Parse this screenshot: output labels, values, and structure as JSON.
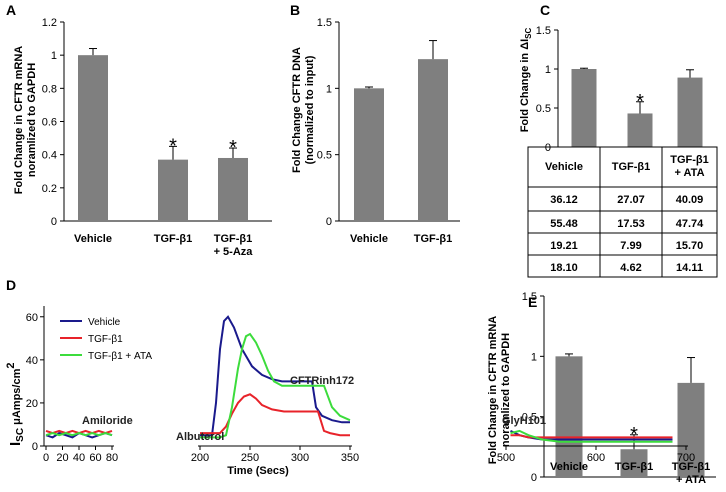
{
  "chart_data": [
    {
      "panel": "A",
      "type": "bar",
      "ylabel": [
        "Fold Change in CFTR mRNA",
        "noramlized to GAPDH"
      ],
      "categories": [
        [
          "Vehicle"
        ],
        [
          "TGF-β1"
        ],
        [
          "TGF-β1",
          "+ 5-Aza"
        ]
      ],
      "values": [
        1.0,
        0.37,
        0.38
      ],
      "errors": [
        0.04,
        0.08,
        0.06
      ],
      "significant": [
        false,
        true,
        true
      ],
      "ylim": [
        0,
        1.2
      ],
      "yticks": [
        0,
        0.2,
        0.4,
        0.6,
        0.8,
        1,
        1.2
      ],
      "ytick_labels": [
        "0",
        "0.2",
        "0.4",
        "0.6",
        "0.8",
        "1",
        "1.2"
      ],
      "color": "#7f7f7f"
    },
    {
      "panel": "B",
      "type": "bar",
      "ylabel": [
        "Fold Change  CFTR DNA",
        "(normalized to input)"
      ],
      "categories": [
        [
          "Vehicle"
        ],
        [
          "TGF-β1"
        ]
      ],
      "values": [
        1.0,
        1.22
      ],
      "errors": [
        0.01,
        0.14
      ],
      "significant": [
        false,
        false
      ],
      "ylim": [
        0,
        1.5
      ],
      "yticks": [
        0,
        0.5,
        1,
        1.5
      ],
      "ytick_labels": [
        "0",
        "0.5",
        "1",
        "1.5"
      ],
      "color": "#7f7f7f"
    },
    {
      "panel": "C",
      "type": "bar",
      "ylabel": [
        "Fold Change in ΔI",
        "SC"
      ],
      "categories": [
        [
          "Vehicle"
        ],
        [
          "TGF-β1"
        ],
        [
          "TGF-β1",
          "+ ATA"
        ]
      ],
      "values": [
        1.0,
        0.43,
        0.89
      ],
      "errors": [
        0.01,
        0.15,
        0.1
      ],
      "significant": [
        false,
        true,
        false
      ],
      "ylim": [
        0,
        1.5
      ],
      "yticks": [
        0,
        0.5,
        1,
        1.5
      ],
      "ytick_labels": [
        "0",
        "0.5",
        "1",
        "1.5"
      ],
      "color": "#7f7f7f",
      "table": {
        "header": [
          [
            "Vehicle"
          ],
          [
            "TGF-β1"
          ],
          [
            "TGF-β1",
            "+ ATA"
          ]
        ],
        "rows": [
          [
            "36.12",
            "27.07",
            "40.09"
          ],
          [
            "55.48",
            "17.53",
            "47.74"
          ],
          [
            "19.21",
            "7.99",
            "15.70"
          ],
          [
            "18.10",
            "4.62",
            "14.11"
          ]
        ]
      }
    },
    {
      "panel": "D",
      "type": "line",
      "ylabel": [
        "I",
        "SC",
        "μAmps/cm",
        "2"
      ],
      "xlabel": "Time (Secs)",
      "ylim": [
        0,
        65
      ],
      "yticks": [
        0,
        20,
        40,
        60
      ],
      "ytick_labels": [
        "0",
        "20",
        "40",
        "60"
      ],
      "segments": [
        {
          "xlim": [
            0,
            80
          ],
          "xticks": [
            0,
            20,
            40,
            60,
            80
          ],
          "xtick_labels": [
            "0",
            "20",
            "40",
            "60",
            "80"
          ]
        },
        {
          "xlim": [
            200,
            350
          ],
          "xticks": [
            200,
            250,
            300,
            350
          ],
          "xtick_labels": [
            "200",
            "250",
            "300",
            "350"
          ]
        },
        {
          "xlim": [
            500,
            700
          ],
          "xticks": [
            500,
            600,
            700
          ],
          "xtick_labels": [
            "500",
            "600",
            "700"
          ]
        }
      ],
      "legend": [
        "Vehicle",
        "TGF-β1",
        "TGF-β1 + ATA"
      ],
      "annotations": [
        "Amiloride",
        "Albuterol",
        "CFTRinh172",
        "GlyH101"
      ],
      "series": [
        {
          "name": "Vehicle",
          "color": "#1a1a8c",
          "segments": [
            [
              [
                0,
                5
              ],
              [
                8,
                4
              ],
              [
                16,
                6
              ],
              [
                24,
                5
              ],
              [
                32,
                4
              ],
              [
                40,
                6
              ],
              [
                48,
                5
              ],
              [
                56,
                4
              ],
              [
                64,
                5
              ],
              [
                72,
                6
              ],
              [
                80,
                5
              ]
            ],
            [
              [
                200,
                5
              ],
              [
                206,
                5
              ],
              [
                212,
                5
              ],
              [
                216,
                20
              ],
              [
                220,
                45
              ],
              [
                224,
                58
              ],
              [
                228,
                60
              ],
              [
                234,
                55
              ],
              [
                242,
                45
              ],
              [
                252,
                37
              ],
              [
                262,
                33
              ],
              [
                272,
                31
              ],
              [
                282,
                30
              ],
              [
                296,
                30
              ],
              [
                308,
                30
              ],
              [
                312,
                30
              ],
              [
                316,
                18
              ],
              [
                322,
                14
              ],
              [
                332,
                12
              ],
              [
                342,
                11
              ],
              [
                350,
                11
              ]
            ],
            [
              [
                505,
                7
              ],
              [
                515,
                5
              ],
              [
                525,
                4
              ],
              [
                540,
                3
              ],
              [
                560,
                3
              ],
              [
                580,
                3
              ],
              [
                600,
                3
              ],
              [
                620,
                3
              ],
              [
                640,
                3
              ],
              [
                660,
                3
              ],
              [
                685,
                3
              ]
            ]
          ]
        },
        {
          "name": "TGF-β1",
          "color": "#e8232a",
          "segments": [
            [
              [
                0,
                7
              ],
              [
                8,
                6
              ],
              [
                16,
                7
              ],
              [
                24,
                6
              ],
              [
                32,
                7
              ],
              [
                40,
                6
              ],
              [
                48,
                7
              ],
              [
                56,
                6
              ],
              [
                64,
                7
              ],
              [
                72,
                6
              ],
              [
                80,
                7
              ]
            ],
            [
              [
                200,
                6
              ],
              [
                208,
                6
              ],
              [
                214,
                6
              ],
              [
                220,
                6
              ],
              [
                226,
                9
              ],
              [
                232,
                15
              ],
              [
                238,
                20
              ],
              [
                244,
                23
              ],
              [
                250,
                24
              ],
              [
                256,
                22
              ],
              [
                262,
                19
              ],
              [
                272,
                17
              ],
              [
                284,
                16
              ],
              [
                298,
                16
              ],
              [
                312,
                16
              ],
              [
                318,
                16
              ],
              [
                324,
                7
              ],
              [
                330,
                6
              ],
              [
                340,
                5
              ],
              [
                350,
                5
              ]
            ],
            [
              [
                505,
                5
              ],
              [
                515,
                5
              ],
              [
                525,
                4
              ],
              [
                540,
                4
              ],
              [
                560,
                4
              ],
              [
                580,
                4
              ],
              [
                600,
                4
              ],
              [
                620,
                4
              ],
              [
                640,
                4
              ],
              [
                660,
                4
              ],
              [
                685,
                4
              ]
            ]
          ]
        },
        {
          "name": "TGF-β1 + ATA",
          "color": "#3cdc3c",
          "segments": [
            [
              [
                0,
                5
              ],
              [
                8,
                6
              ],
              [
                16,
                5
              ],
              [
                24,
                6
              ],
              [
                32,
                5
              ],
              [
                40,
                6
              ],
              [
                48,
                5
              ],
              [
                56,
                6
              ],
              [
                64,
                5
              ],
              [
                72,
                6
              ],
              [
                80,
                5
              ]
            ],
            [
              [
                200,
                4
              ],
              [
                210,
                4
              ],
              [
                220,
                4
              ],
              [
                226,
                5
              ],
              [
                232,
                18
              ],
              [
                238,
                36
              ],
              [
                242,
                45
              ],
              [
                246,
                51
              ],
              [
                250,
                52
              ],
              [
                256,
                48
              ],
              [
                262,
                42
              ],
              [
                268,
                35
              ],
              [
                274,
                30
              ],
              [
                282,
                28
              ],
              [
                296,
                28
              ],
              [
                316,
                28
              ],
              [
                324,
                28
              ],
              [
                332,
                18
              ],
              [
                340,
                14
              ],
              [
                350,
                12
              ]
            ],
            [
              [
                505,
                6
              ],
              [
                515,
                7
              ],
              [
                525,
                5
              ],
              [
                540,
                3
              ],
              [
                560,
                2
              ],
              [
                580,
                2
              ],
              [
                600,
                2
              ],
              [
                620,
                2
              ],
              [
                640,
                2
              ],
              [
                660,
                2
              ],
              [
                685,
                2
              ]
            ]
          ]
        }
      ]
    },
    {
      "panel": "E",
      "type": "bar",
      "ylabel": [
        "Fold Change in CFTR mRNA",
        "noramlized to GAPDH"
      ],
      "categories": [
        [
          "Vehicle"
        ],
        [
          "TGF-β1"
        ],
        [
          "TGF-β1",
          "+ ATA"
        ]
      ],
      "values": [
        1.0,
        0.23,
        0.78
      ],
      "errors": [
        0.02,
        0.12,
        0.21
      ],
      "significant": [
        false,
        true,
        false
      ],
      "ylim": [
        0,
        1.5
      ],
      "yticks": [
        0,
        0.5,
        1,
        1.5
      ],
      "ytick_labels": [
        "0",
        "0.5",
        "1",
        "1.5"
      ],
      "color": "#7f7f7f"
    }
  ]
}
